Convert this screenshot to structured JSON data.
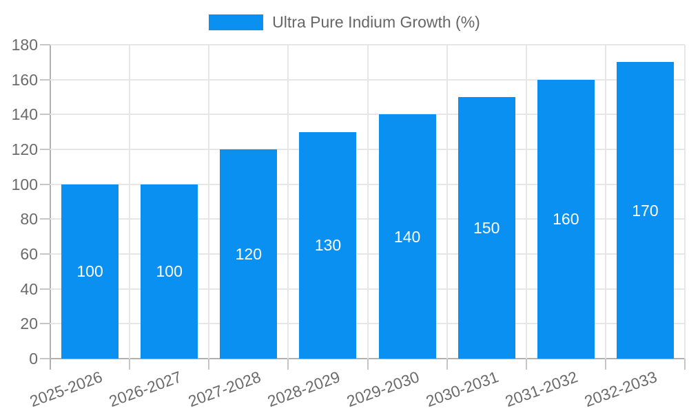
{
  "chart_data": {
    "type": "bar",
    "title": "",
    "legend_label": "Ultra Pure Indium Growth (%)",
    "legend_position": "top",
    "categories": [
      "2025-2026",
      "2026-2027",
      "2027-2028",
      "2028-2029",
      "2029-2030",
      "2030-2031",
      "2031-2032",
      "2032-2033"
    ],
    "values": [
      100,
      100,
      120,
      130,
      140,
      150,
      160,
      170
    ],
    "bar_value_labels": [
      "100",
      "100",
      "120",
      "130",
      "140",
      "150",
      "160",
      "170"
    ],
    "xlabel": "",
    "ylabel": "",
    "yticks": [
      0,
      20,
      40,
      60,
      80,
      100,
      120,
      140,
      160,
      180
    ],
    "ylim": [
      0,
      180
    ],
    "grid": true,
    "colors": {
      "bar": "#0a90f1",
      "bar_label": "#ffffff",
      "grid": "#e6e6e6",
      "axis": "#b0b0b0",
      "tick": "#c6c6c6",
      "axis_text": "#6b6b6b",
      "legend_text": "#666666",
      "background": "#ffffff"
    }
  }
}
